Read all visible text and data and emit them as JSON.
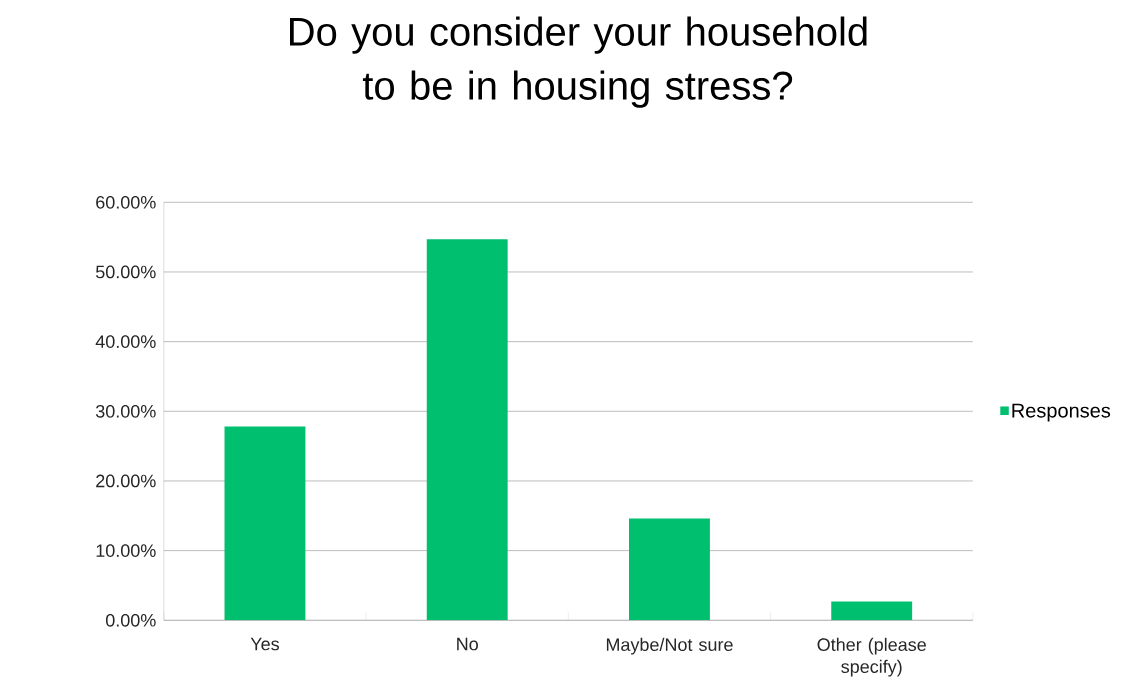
{
  "chart_data": {
    "type": "bar",
    "title": "Do you consider your household to be in housing stress?",
    "categories": [
      "Yes",
      "No",
      "Maybe/Not sure",
      "Other (please specify)"
    ],
    "series": [
      {
        "name": "Responses",
        "color": "#00bf6f",
        "values": [
          27.8,
          54.7,
          14.6,
          2.7
        ]
      }
    ],
    "ylim": [
      0,
      60
    ],
    "yticks": [
      {
        "value": 0,
        "label": "0.00%"
      },
      {
        "value": 10,
        "label": "10.00%"
      },
      {
        "value": 20,
        "label": "20.00%"
      },
      {
        "value": 30,
        "label": "30.00%"
      },
      {
        "value": 40,
        "label": "40.00%"
      },
      {
        "value": 50,
        "label": "50.00%"
      },
      {
        "value": 60,
        "label": "60.00%"
      }
    ],
    "grid": "y",
    "legend": "right"
  }
}
